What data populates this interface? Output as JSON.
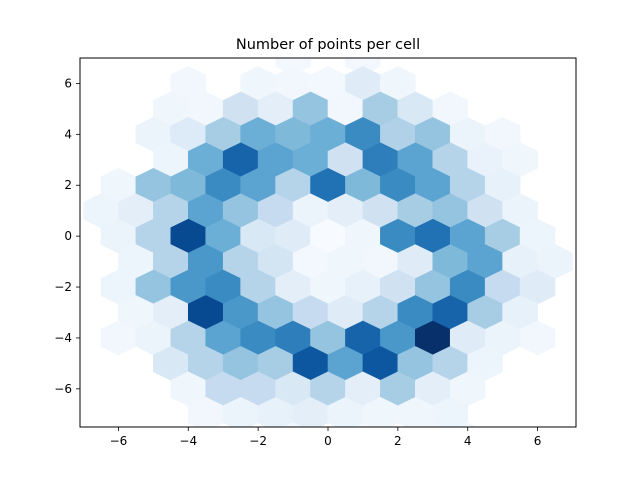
{
  "chart_data": {
    "type": "heatmap",
    "subtype": "hexbin",
    "title": "Number of points per cell",
    "xlabel": "",
    "ylabel": "",
    "xlim": [
      -7.1,
      7.1
    ],
    "ylim": [
      -7.5,
      7.0
    ],
    "x_ticks": [
      -6,
      -4,
      -2,
      0,
      2,
      4,
      6
    ],
    "y_ticks": [
      -6,
      -4,
      -2,
      0,
      2,
      4,
      6
    ],
    "x_tick_labels": [
      "−6",
      "−4",
      "−2",
      "0",
      "2",
      "4",
      "6"
    ],
    "y_tick_labels": [
      "−6",
      "−4",
      "−2",
      "0",
      "2",
      "4",
      "6"
    ],
    "grid": false,
    "colormap": "Blues",
    "colormap_stops": [
      "#f7fbff",
      "#deebf7",
      "#c6dbef",
      "#9ecae1",
      "#6baed6",
      "#4292c6",
      "#2171b5",
      "#08519c",
      "#08306b"
    ],
    "hex_cell_width": 1.0,
    "hex_row_spacing": 1.0,
    "intensity_scale": "relative count, 0 = lightest, 1 = darkest",
    "cells": [
      {
        "x": -1.0,
        "y": 7.0,
        "v": 0.02
      },
      {
        "x": 1.0,
        "y": 7.0,
        "v": 0.02
      },
      {
        "x": -4.0,
        "y": 6.0,
        "v": 0.03
      },
      {
        "x": -2.0,
        "y": 6.0,
        "v": 0.04
      },
      {
        "x": -1.0,
        "y": 6.0,
        "v": 0.03
      },
      {
        "x": 0.0,
        "y": 6.0,
        "v": 0.02
      },
      {
        "x": 1.0,
        "y": 6.0,
        "v": 0.12
      },
      {
        "x": 2.0,
        "y": 6.0,
        "v": 0.04
      },
      {
        "x": -4.5,
        "y": 5.0,
        "v": 0.04
      },
      {
        "x": -3.5,
        "y": 5.0,
        "v": 0.03
      },
      {
        "x": -2.5,
        "y": 5.0,
        "v": 0.2
      },
      {
        "x": -1.5,
        "y": 5.0,
        "v": 0.1
      },
      {
        "x": -0.5,
        "y": 5.0,
        "v": 0.4
      },
      {
        "x": 0.5,
        "y": 5.0,
        "v": 0.03
      },
      {
        "x": 1.5,
        "y": 5.0,
        "v": 0.35
      },
      {
        "x": 2.5,
        "y": 5.0,
        "v": 0.15
      },
      {
        "x": 3.5,
        "y": 5.0,
        "v": 0.03
      },
      {
        "x": -5.0,
        "y": 4.0,
        "v": 0.06
      },
      {
        "x": -4.0,
        "y": 4.0,
        "v": 0.13
      },
      {
        "x": -3.0,
        "y": 4.0,
        "v": 0.35
      },
      {
        "x": -2.0,
        "y": 4.0,
        "v": 0.5
      },
      {
        "x": -1.0,
        "y": 4.0,
        "v": 0.45
      },
      {
        "x": 0.0,
        "y": 4.0,
        "v": 0.5
      },
      {
        "x": 1.0,
        "y": 4.0,
        "v": 0.65
      },
      {
        "x": 2.0,
        "y": 4.0,
        "v": 0.32
      },
      {
        "x": 3.0,
        "y": 4.0,
        "v": 0.4
      },
      {
        "x": 4.0,
        "y": 4.0,
        "v": 0.06
      },
      {
        "x": 5.0,
        "y": 4.0,
        "v": 0.03
      },
      {
        "x": -4.5,
        "y": 3.0,
        "v": 0.05
      },
      {
        "x": -3.5,
        "y": 3.0,
        "v": 0.5
      },
      {
        "x": -2.5,
        "y": 3.0,
        "v": 0.8
      },
      {
        "x": -1.5,
        "y": 3.0,
        "v": 0.55
      },
      {
        "x": -0.5,
        "y": 3.0,
        "v": 0.5
      },
      {
        "x": 0.5,
        "y": 3.0,
        "v": 0.2
      },
      {
        "x": 1.5,
        "y": 3.0,
        "v": 0.7
      },
      {
        "x": 2.5,
        "y": 3.0,
        "v": 0.55
      },
      {
        "x": 3.5,
        "y": 3.0,
        "v": 0.3
      },
      {
        "x": 4.5,
        "y": 3.0,
        "v": 0.07
      },
      {
        "x": 5.5,
        "y": 3.0,
        "v": 0.04
      },
      {
        "x": -6.0,
        "y": 2.0,
        "v": 0.04
      },
      {
        "x": -5.0,
        "y": 2.0,
        "v": 0.4
      },
      {
        "x": -4.0,
        "y": 2.0,
        "v": 0.45
      },
      {
        "x": -3.0,
        "y": 2.0,
        "v": 0.65
      },
      {
        "x": -2.0,
        "y": 2.0,
        "v": 0.55
      },
      {
        "x": -1.0,
        "y": 2.0,
        "v": 0.3
      },
      {
        "x": 0.0,
        "y": 2.0,
        "v": 0.75
      },
      {
        "x": 1.0,
        "y": 2.0,
        "v": 0.45
      },
      {
        "x": 2.0,
        "y": 2.0,
        "v": 0.65
      },
      {
        "x": 3.0,
        "y": 2.0,
        "v": 0.55
      },
      {
        "x": 4.0,
        "y": 2.0,
        "v": 0.3
      },
      {
        "x": 5.0,
        "y": 2.0,
        "v": 0.08
      },
      {
        "x": -6.5,
        "y": 1.0,
        "v": 0.05
      },
      {
        "x": -5.5,
        "y": 1.0,
        "v": 0.1
      },
      {
        "x": -4.5,
        "y": 1.0,
        "v": 0.3
      },
      {
        "x": -3.5,
        "y": 1.0,
        "v": 0.55
      },
      {
        "x": -2.5,
        "y": 1.0,
        "v": 0.4
      },
      {
        "x": -1.5,
        "y": 1.0,
        "v": 0.25
      },
      {
        "x": -0.5,
        "y": 1.0,
        "v": 0.06
      },
      {
        "x": 0.5,
        "y": 1.0,
        "v": 0.1
      },
      {
        "x": 1.5,
        "y": 1.0,
        "v": 0.2
      },
      {
        "x": 2.5,
        "y": 1.0,
        "v": 0.35
      },
      {
        "x": 3.5,
        "y": 1.0,
        "v": 0.4
      },
      {
        "x": 4.5,
        "y": 1.0,
        "v": 0.2
      },
      {
        "x": 5.5,
        "y": 1.0,
        "v": 0.06
      },
      {
        "x": -6.0,
        "y": 0.0,
        "v": 0.06
      },
      {
        "x": -5.0,
        "y": 0.0,
        "v": 0.3
      },
      {
        "x": -4.0,
        "y": 0.0,
        "v": 0.9
      },
      {
        "x": -3.0,
        "y": 0.0,
        "v": 0.5
      },
      {
        "x": -2.0,
        "y": 0.0,
        "v": 0.15
      },
      {
        "x": -1.0,
        "y": 0.0,
        "v": 0.12
      },
      {
        "x": 0.0,
        "y": 0.0,
        "v": 0.0
      },
      {
        "x": 1.0,
        "y": 0.0,
        "v": 0.04
      },
      {
        "x": 2.0,
        "y": 0.0,
        "v": 0.65
      },
      {
        "x": 3.0,
        "y": 0.0,
        "v": 0.75
      },
      {
        "x": 4.0,
        "y": 0.0,
        "v": 0.55
      },
      {
        "x": 5.0,
        "y": 0.0,
        "v": 0.35
      },
      {
        "x": 6.0,
        "y": 0.0,
        "v": 0.05
      },
      {
        "x": -5.5,
        "y": -1.0,
        "v": 0.05
      },
      {
        "x": -4.5,
        "y": -1.0,
        "v": 0.3
      },
      {
        "x": -3.5,
        "y": -1.0,
        "v": 0.6
      },
      {
        "x": -2.5,
        "y": -1.0,
        "v": 0.3
      },
      {
        "x": -1.5,
        "y": -1.0,
        "v": 0.18
      },
      {
        "x": -0.5,
        "y": -1.0,
        "v": 0.02
      },
      {
        "x": 0.5,
        "y": -1.0,
        "v": 0.04
      },
      {
        "x": 1.5,
        "y": -1.0,
        "v": 0.03
      },
      {
        "x": 2.5,
        "y": -1.0,
        "v": 0.12
      },
      {
        "x": 3.5,
        "y": -1.0,
        "v": 0.45
      },
      {
        "x": 4.5,
        "y": -1.0,
        "v": 0.55
      },
      {
        "x": 5.5,
        "y": -1.0,
        "v": 0.08
      },
      {
        "x": 6.5,
        "y": -1.0,
        "v": 0.06
      },
      {
        "x": -6.0,
        "y": -2.0,
        "v": 0.05
      },
      {
        "x": -5.0,
        "y": -2.0,
        "v": 0.4
      },
      {
        "x": -4.0,
        "y": -2.0,
        "v": 0.6
      },
      {
        "x": -3.0,
        "y": -2.0,
        "v": 0.65
      },
      {
        "x": -2.0,
        "y": -2.0,
        "v": 0.3
      },
      {
        "x": -1.0,
        "y": -2.0,
        "v": 0.1
      },
      {
        "x": 0.0,
        "y": -2.0,
        "v": 0.04
      },
      {
        "x": 1.0,
        "y": -2.0,
        "v": 0.08
      },
      {
        "x": 2.0,
        "y": -2.0,
        "v": 0.2
      },
      {
        "x": 3.0,
        "y": -2.0,
        "v": 0.4
      },
      {
        "x": 4.0,
        "y": -2.0,
        "v": 0.65
      },
      {
        "x": 5.0,
        "y": -2.0,
        "v": 0.25
      },
      {
        "x": 6.0,
        "y": -2.0,
        "v": 0.12
      },
      {
        "x": -5.5,
        "y": -3.0,
        "v": 0.04
      },
      {
        "x": -4.5,
        "y": -3.0,
        "v": 0.1
      },
      {
        "x": -3.5,
        "y": -3.0,
        "v": 0.9
      },
      {
        "x": -2.5,
        "y": -3.0,
        "v": 0.6
      },
      {
        "x": -1.5,
        "y": -3.0,
        "v": 0.4
      },
      {
        "x": -0.5,
        "y": -3.0,
        "v": 0.25
      },
      {
        "x": 0.5,
        "y": -3.0,
        "v": 0.12
      },
      {
        "x": 1.5,
        "y": -3.0,
        "v": 0.3
      },
      {
        "x": 2.5,
        "y": -3.0,
        "v": 0.65
      },
      {
        "x": 3.5,
        "y": -3.0,
        "v": 0.8
      },
      {
        "x": 4.5,
        "y": -3.0,
        "v": 0.35
      },
      {
        "x": 5.5,
        "y": -3.0,
        "v": 0.08
      },
      {
        "x": -6.0,
        "y": -4.0,
        "v": 0.03
      },
      {
        "x": -5.0,
        "y": -4.0,
        "v": 0.06
      },
      {
        "x": -4.0,
        "y": -4.0,
        "v": 0.3
      },
      {
        "x": -3.0,
        "y": -4.0,
        "v": 0.55
      },
      {
        "x": -2.0,
        "y": -4.0,
        "v": 0.65
      },
      {
        "x": -1.0,
        "y": -4.0,
        "v": 0.7
      },
      {
        "x": 0.0,
        "y": -4.0,
        "v": 0.4
      },
      {
        "x": 1.0,
        "y": -4.0,
        "v": 0.8
      },
      {
        "x": 2.0,
        "y": -4.0,
        "v": 0.6
      },
      {
        "x": 3.0,
        "y": -4.0,
        "v": 1.0
      },
      {
        "x": 4.0,
        "y": -4.0,
        "v": 0.12
      },
      {
        "x": 5.0,
        "y": -4.0,
        "v": 0.06
      },
      {
        "x": 6.0,
        "y": -4.0,
        "v": 0.03
      },
      {
        "x": -4.5,
        "y": -5.0,
        "v": 0.15
      },
      {
        "x": -3.5,
        "y": -5.0,
        "v": 0.3
      },
      {
        "x": -2.5,
        "y": -5.0,
        "v": 0.4
      },
      {
        "x": -1.5,
        "y": -5.0,
        "v": 0.35
      },
      {
        "x": -0.5,
        "y": -5.0,
        "v": 0.85
      },
      {
        "x": 0.5,
        "y": -5.0,
        "v": 0.55
      },
      {
        "x": 1.5,
        "y": -5.0,
        "v": 0.85
      },
      {
        "x": 2.5,
        "y": -5.0,
        "v": 0.4
      },
      {
        "x": 3.5,
        "y": -5.0,
        "v": 0.3
      },
      {
        "x": 4.5,
        "y": -5.0,
        "v": 0.05
      },
      {
        "x": -4.0,
        "y": -6.0,
        "v": 0.04
      },
      {
        "x": -3.0,
        "y": -6.0,
        "v": 0.25
      },
      {
        "x": -2.0,
        "y": -6.0,
        "v": 0.25
      },
      {
        "x": -1.0,
        "y": -6.0,
        "v": 0.15
      },
      {
        "x": 0.0,
        "y": -6.0,
        "v": 0.3
      },
      {
        "x": 1.0,
        "y": -6.0,
        "v": 0.1
      },
      {
        "x": 2.0,
        "y": -6.0,
        "v": 0.35
      },
      {
        "x": 3.0,
        "y": -6.0,
        "v": 0.1
      },
      {
        "x": 4.0,
        "y": -6.0,
        "v": 0.04
      },
      {
        "x": -3.5,
        "y": -7.0,
        "v": 0.03
      },
      {
        "x": -2.5,
        "y": -7.0,
        "v": 0.06
      },
      {
        "x": -1.5,
        "y": -7.0,
        "v": 0.08
      },
      {
        "x": -0.5,
        "y": -7.0,
        "v": 0.1
      },
      {
        "x": 0.5,
        "y": -7.0,
        "v": 0.06
      },
      {
        "x": 1.5,
        "y": -7.0,
        "v": 0.04
      },
      {
        "x": 2.5,
        "y": -7.0,
        "v": 0.04
      },
      {
        "x": 3.5,
        "y": -7.0,
        "v": 0.05
      },
      {
        "x": -1.0,
        "y": -8.0,
        "v": 0.03
      },
      {
        "x": 1.0,
        "y": -8.0,
        "v": 0.03
      },
      {
        "x": 3.0,
        "y": -8.0,
        "v": 0.03
      },
      {
        "x": 4.0,
        "y": -8.0,
        "v": 0.03
      }
    ]
  }
}
